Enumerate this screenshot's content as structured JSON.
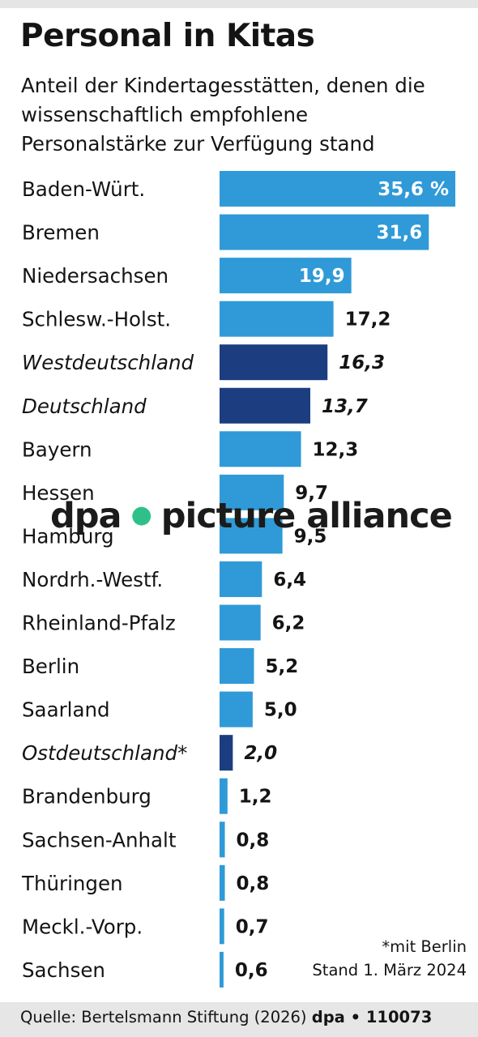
{
  "title": "Personal in Kitas",
  "subtitle_lines": [
    "Anteil der Kindertagesstätten, denen die",
    "wissenschaftlich empfohlene",
    "Personalstärke zur Verfügung stand"
  ],
  "colors": {
    "region": "#2f9ad7",
    "aggregate": "#1c3e80",
    "watermark_dot": "#2fc08a"
  },
  "chart_data": {
    "type": "bar",
    "orientation": "horizontal",
    "unit": "%",
    "categories": [
      "Baden-Würt.",
      "Bremen",
      "Niedersachsen",
      "Schlesw.-Holst.",
      "Westdeutschland",
      "Deutschland",
      "Bayern",
      "Hessen",
      "Hamburg",
      "Nordrh.-Westf.",
      "Rheinland-Pfalz",
      "Berlin",
      "Saarland",
      "Ostdeutschland*",
      "Brandenburg",
      "Sachsen-Anhalt",
      "Thüringen",
      "Meckl.-Vorp.",
      "Sachsen"
    ],
    "values": [
      35.6,
      31.6,
      19.9,
      17.2,
      16.3,
      13.7,
      12.3,
      9.7,
      9.5,
      6.4,
      6.2,
      5.2,
      5.0,
      2.0,
      1.2,
      0.8,
      0.8,
      0.7,
      0.6
    ],
    "value_labels": [
      "35,6 %",
      "31,6",
      "19,9",
      "17,2",
      "16,3",
      "13,7",
      "12,3",
      "9,7",
      "9,5",
      "6,4",
      "6,2",
      "5,2",
      "5,0",
      "2,0",
      "1,2",
      "0,8",
      "0,8",
      "0,7",
      "0,6"
    ],
    "aggregate": [
      false,
      false,
      false,
      false,
      true,
      true,
      false,
      false,
      false,
      false,
      false,
      false,
      false,
      true,
      false,
      false,
      false,
      false,
      false
    ],
    "xlim": [
      0,
      35.6
    ],
    "grid": false,
    "legend": "none"
  },
  "note_lines": [
    "*mit Berlin",
    "Stand 1. März 2024"
  ],
  "watermark": {
    "left": "dpa",
    "dot": "●",
    "right": "picture alliance"
  },
  "footer": {
    "source": "Quelle: Bertelsmann Stiftung (2026)",
    "agency": "dpa • 110073"
  }
}
